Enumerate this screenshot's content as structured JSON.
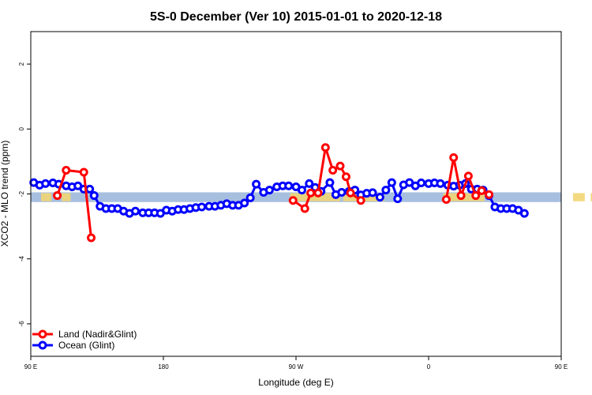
{
  "chart_data": {
    "type": "line",
    "title": "5S-0 December (Ver 10)   2015-01-01 to 2020-12-18",
    "xlabel": "Longitude (deg E)",
    "ylabel": "XCO2 - MLO trend (ppm)",
    "xlim": [
      90,
      450
    ],
    "ylim": [
      -7,
      3
    ],
    "xticks": [
      {
        "value": 90,
        "label": "90 E"
      },
      {
        "value": 180,
        "label": "180"
      },
      {
        "value": 270,
        "label": "90 W"
      },
      {
        "value": 360,
        "label": "0"
      },
      {
        "value": 450,
        "label": "90 E"
      },
      {
        "value": 540,
        "label": "180"
      }
    ],
    "yticks": [
      {
        "value": -6,
        "label": "-6"
      },
      {
        "value": -4,
        "label": "-4"
      },
      {
        "value": -2,
        "label": "-2"
      },
      {
        "value": 0,
        "label": "0"
      },
      {
        "value": 2,
        "label": "2"
      }
    ],
    "band": {
      "low": -2.25,
      "high": -1.95,
      "color": "#a7bfdf",
      "highlight_color": "#f2d573"
    },
    "grid": false,
    "legend_position": "bottom-left",
    "series": [
      {
        "name": "Land (Nadir&Glint)",
        "color": "#ff0000",
        "segments": [
          [
            [
              108,
              -2.05
            ],
            [
              114,
              -1.27
            ],
            [
              126,
              -1.33
            ],
            [
              131,
              -3.35
            ]
          ],
          [
            [
              268,
              -2.2
            ],
            [
              276,
              -2.45
            ],
            [
              280,
              -1.97
            ],
            [
              285,
              -1.97
            ],
            [
              290,
              -0.57
            ],
            [
              295,
              -1.27
            ],
            [
              300,
              -1.14
            ],
            [
              304,
              -1.47
            ],
            [
              307,
              -1.97
            ],
            [
              314,
              -2.2
            ]
          ],
          [
            [
              372,
              -2.17
            ],
            [
              377,
              -0.88
            ],
            [
              382,
              -2.05
            ],
            [
              387,
              -1.45
            ],
            [
              392,
              -2.05
            ],
            [
              396,
              -1.9
            ],
            [
              401,
              -2.02
            ]
          ],
          [
            [
              468,
              -2.05
            ],
            [
              474,
              -1.27
            ],
            [
              486,
              -1.33
            ],
            [
              491,
              -3.35
            ]
          ]
        ]
      },
      {
        "name": "Ocean (Glint)",
        "color": "#0000ff",
        "points": [
          [
            92,
            -1.65
          ],
          [
            96,
            -1.73
          ],
          [
            100,
            -1.68
          ],
          [
            105,
            -1.66
          ],
          [
            109,
            -1.7
          ],
          [
            114,
            -1.75
          ],
          [
            118,
            -1.78
          ],
          [
            122,
            -1.75
          ],
          [
            126,
            -1.85
          ],
          [
            130,
            -1.85
          ],
          [
            133,
            -2.05
          ],
          [
            137,
            -2.38
          ],
          [
            141,
            -2.45
          ],
          [
            145,
            -2.45
          ],
          [
            149,
            -2.45
          ],
          [
            153,
            -2.53
          ],
          [
            157,
            -2.6
          ],
          [
            161,
            -2.53
          ],
          [
            166,
            -2.58
          ],
          [
            170,
            -2.58
          ],
          [
            174,
            -2.58
          ],
          [
            178,
            -2.6
          ],
          [
            182,
            -2.5
          ],
          [
            186,
            -2.53
          ],
          [
            190,
            -2.48
          ],
          [
            194,
            -2.48
          ],
          [
            198,
            -2.45
          ],
          [
            202,
            -2.42
          ],
          [
            206,
            -2.4
          ],
          [
            211,
            -2.38
          ],
          [
            215,
            -2.38
          ],
          [
            219,
            -2.35
          ],
          [
            223,
            -2.3
          ],
          [
            227,
            -2.35
          ],
          [
            231,
            -2.35
          ],
          [
            235,
            -2.28
          ],
          [
            239,
            -2.12
          ],
          [
            243,
            -1.7
          ],
          [
            248,
            -1.95
          ],
          [
            252,
            -1.88
          ],
          [
            257,
            -1.78
          ],
          [
            261,
            -1.75
          ],
          [
            265,
            -1.75
          ],
          [
            270,
            -1.78
          ],
          [
            274,
            -1.88
          ],
          [
            279,
            -1.68
          ],
          [
            283,
            -1.8
          ],
          [
            287,
            -1.92
          ],
          [
            293,
            -1.65
          ],
          [
            297,
            -2.02
          ],
          [
            301,
            -1.95
          ],
          [
            306,
            -1.92
          ],
          [
            310,
            -1.88
          ],
          [
            314,
            -2.03
          ],
          [
            318,
            -1.98
          ],
          [
            322,
            -1.96
          ],
          [
            327,
            -2.1
          ],
          [
            331,
            -1.88
          ],
          [
            335,
            -1.65
          ],
          [
            339,
            -2.15
          ],
          [
            343,
            -1.72
          ],
          [
            347,
            -1.65
          ],
          [
            351,
            -1.75
          ],
          [
            355,
            -1.66
          ],
          [
            360,
            -1.68
          ],
          [
            364,
            -1.66
          ],
          [
            368,
            -1.68
          ],
          [
            373,
            -1.73
          ],
          [
            377,
            -1.76
          ],
          [
            381,
            -1.73
          ],
          [
            385,
            -1.68
          ],
          [
            389,
            -1.85
          ],
          [
            393,
            -1.85
          ],
          [
            397,
            -1.88
          ],
          [
            401,
            -2.05
          ],
          [
            405,
            -2.4
          ],
          [
            409,
            -2.45
          ],
          [
            413,
            -2.45
          ],
          [
            417,
            -2.45
          ],
          [
            421,
            -2.5
          ],
          [
            425,
            -2.6
          ]
        ]
      }
    ]
  }
}
